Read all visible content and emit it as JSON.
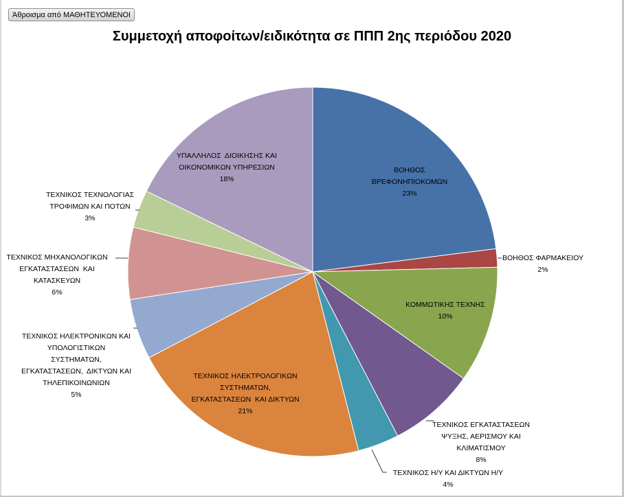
{
  "pivot_field_button": "Άθροισμα από ΜΑΘΗΤΕΥΟΜΕΝΟΙ",
  "chart_data": {
    "type": "pie",
    "title": "Συμμετοχή αποφοίτων/ειδικότητα σε ΠΠΠ 2ης περιόδου 2020",
    "slices": [
      {
        "label_lines": [
          "ΒΟΗΘΟΣ",
          "ΒΡΕΦΟΝΗΠΙΟΚΟΜΩΝ"
        ],
        "percent_label": "23%",
        "value": 23,
        "color": "#4672a8"
      },
      {
        "label_lines": [
          "ΒΟΗΘΟΣ ΦΑΡΜΑΚΕΙΟΥ"
        ],
        "percent_label": "2%",
        "value": 1.6,
        "color": "#aa4643"
      },
      {
        "label_lines": [
          "ΚΟΜΜΩΤΙΚΗΣ ΤΕΧΝΗΣ"
        ],
        "percent_label": "10%",
        "value": 10.2,
        "color": "#89a54e"
      },
      {
        "label_lines": [
          "ΤΕΧΝΙΚΟΣ ΕΓΚΑΤΑΣΤΑΣΕΩΝ",
          "ΨΥΞΗΣ, ΑΕΡΙΣΜΟΥ ΚΑΙ",
          "ΚΛΙΜΑΤΙΣΜΟΥ"
        ],
        "percent_label": "8%",
        "value": 7.6,
        "color": "#71588f"
      },
      {
        "label_lines": [
          "ΤΕΧΝΙΚΟΣ Η/Υ ΚΑΙ ΔΙΚΤΥΩΝ Η/Υ"
        ],
        "percent_label": "4%",
        "value": 3.6,
        "color": "#4198af"
      },
      {
        "label_lines": [
          "ΤΕΧΝΙΚΟΣ ΗΛΕΚΤΡΟΛΟΓΙΚΩΝ",
          "ΣΥΣΤΗΜΑΤΩΝ,",
          "ΕΓΚΑΤΑΣΤΑΣΕΩΝ  ΚΑΙ ΔΙΚΤΥΩΝ"
        ],
        "percent_label": "21%",
        "value": 21.3,
        "color": "#db843d"
      },
      {
        "label_lines": [
          "ΤΕΧΝΙΚΟΣ ΗΛΕΚΤΡΟΝΙΚΩΝ ΚΑΙ",
          "ΥΠΟΛΟΓΙΣΤΙΚΩΝ",
          "ΣΥΣΤΗΜΑΤΩΝ,",
          "ΕΓΚΑΤΑΣΤΑΣΕΩΝ,  ΔΙΚΤΥΩΝ ΚΑΙ",
          "ΤΗΛΕΠΙΚΟΙΝΩΝΙΩΝ"
        ],
        "percent_label": "5%",
        "value": 5.3,
        "color": "#93a9cf"
      },
      {
        "label_lines": [
          "ΤΕΧΝΙΚΟΣ ΜΗΧΑΝΟΛΟΓΙΚΩΝ",
          "ΕΓΚΑΤΑΣΤΑΣΕΩΝ  ΚΑΙ",
          "ΚΑΤΑΣΚΕΥΩΝ"
        ],
        "percent_label": "6%",
        "value": 6.3,
        "color": "#d19392"
      },
      {
        "label_lines": [
          "ΤΕΧΝΙΚΟΣ ΤΕΧΝΟΛΟΓΙΑΣ",
          "ΤΡΟΦΙΜΩΝ ΚΑΙ ΠΟΤΩΝ"
        ],
        "percent_label": "3%",
        "value": 3.3,
        "color": "#b9cd96"
      },
      {
        "label_lines": [
          "ΥΠΑΛΛΗΛΟΣ  ΔΙΟΙΚΗΣΗΣ ΚΑΙ",
          "ΟΙΚΟΝΟΜΙΚΩΝ ΥΠΗΡΕΣΙΩΝ"
        ],
        "percent_label": "18%",
        "value": 17.8,
        "color": "#a99bbd"
      }
    ]
  }
}
